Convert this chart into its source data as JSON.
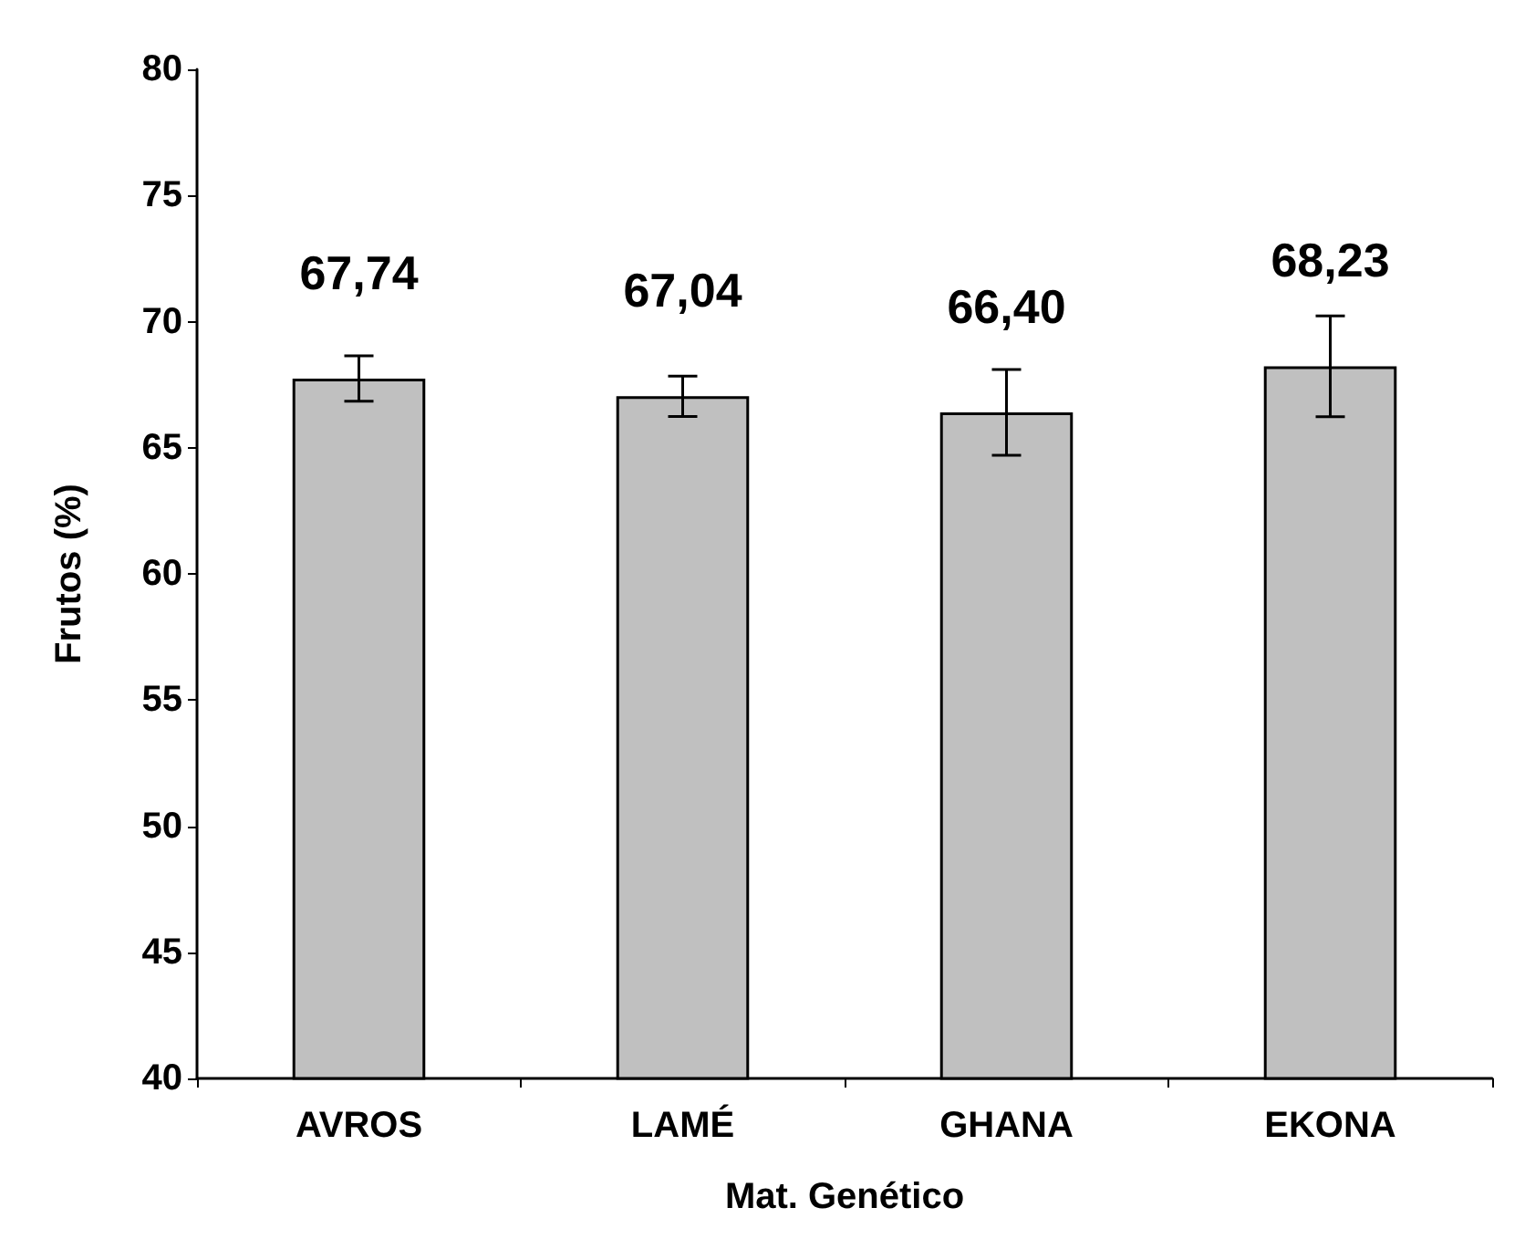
{
  "chart_data": {
    "type": "bar",
    "xlabel": "Mat. Genético",
    "ylabel": "Frutos (%)",
    "categories": [
      "AVROS",
      "LAMÉ",
      "GHANA",
      "EKONA"
    ],
    "values": [
      67.74,
      67.04,
      66.4,
      68.23
    ],
    "value_labels": [
      "67,74",
      "67,04",
      "66,40",
      "68,23"
    ],
    "errors": [
      0.9,
      0.8,
      1.7,
      2.0
    ],
    "color": "#c0c0c0",
    "ylim": [
      40,
      80
    ],
    "yticks": [
      40,
      45,
      50,
      55,
      60,
      65,
      70,
      75,
      80
    ],
    "grid": false
  }
}
